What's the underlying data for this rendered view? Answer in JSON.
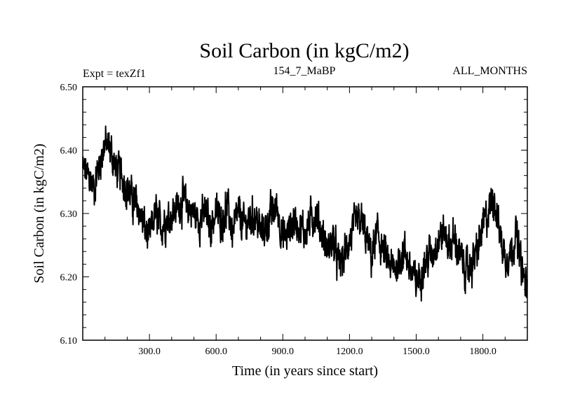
{
  "chart_data": {
    "type": "line",
    "title": "Soil Carbon (in kgC/m2)",
    "subtitle_left": "Expt = texZf1",
    "subtitle_center": "154_7_MaBP",
    "subtitle_right": "ALL_MONTHS",
    "xlabel": "Time (in years since start)",
    "ylabel": "Soil Carbon (in kgC/m2)",
    "xlim": [
      0,
      2000
    ],
    "ylim": [
      6.1,
      6.5
    ],
    "xticks": [
      300,
      600,
      900,
      1200,
      1500,
      1800
    ],
    "xtick_labels": [
      "300.0",
      "600.0",
      "900.0",
      "1200.0",
      "1500.0",
      "1800.0"
    ],
    "yticks": [
      6.1,
      6.2,
      6.3,
      6.4,
      6.5
    ],
    "ytick_labels": [
      "6.10",
      "6.20",
      "6.30",
      "6.40",
      "6.50"
    ],
    "series": [
      {
        "name": "Soil Carbon",
        "color": "#000000",
        "x": [
          0,
          25,
          50,
          75,
          100,
          125,
          150,
          175,
          200,
          225,
          250,
          275,
          300,
          325,
          350,
          375,
          400,
          425,
          450,
          475,
          500,
          525,
          550,
          575,
          600,
          625,
          650,
          675,
          700,
          725,
          750,
          775,
          800,
          825,
          850,
          875,
          900,
          925,
          950,
          975,
          1000,
          1025,
          1050,
          1075,
          1100,
          1125,
          1150,
          1175,
          1200,
          1225,
          1250,
          1275,
          1300,
          1325,
          1350,
          1375,
          1400,
          1425,
          1450,
          1475,
          1500,
          1525,
          1550,
          1575,
          1600,
          1625,
          1650,
          1675,
          1700,
          1725,
          1750,
          1775,
          1800,
          1825,
          1850,
          1875,
          1900,
          1925,
          1950,
          1975,
          2000
        ],
        "values": [
          6.37,
          6.36,
          6.34,
          6.38,
          6.41,
          6.4,
          6.37,
          6.36,
          6.34,
          6.32,
          6.31,
          6.28,
          6.26,
          6.3,
          6.28,
          6.29,
          6.3,
          6.31,
          6.32,
          6.31,
          6.3,
          6.29,
          6.3,
          6.28,
          6.3,
          6.29,
          6.31,
          6.27,
          6.3,
          6.28,
          6.29,
          6.3,
          6.27,
          6.28,
          6.3,
          6.31,
          6.26,
          6.27,
          6.29,
          6.28,
          6.27,
          6.29,
          6.3,
          6.27,
          6.24,
          6.26,
          6.22,
          6.23,
          6.26,
          6.28,
          6.29,
          6.26,
          6.23,
          6.27,
          6.24,
          6.22,
          6.21,
          6.23,
          6.24,
          6.21,
          6.19,
          6.21,
          6.23,
          6.24,
          6.26,
          6.27,
          6.25,
          6.26,
          6.23,
          6.21,
          6.22,
          6.24,
          6.28,
          6.3,
          6.33,
          6.27,
          6.23,
          6.24,
          6.27,
          6.21,
          6.18
        ],
        "noise_amplitude": 0.025
      }
    ],
    "grid": false,
    "legend": "none"
  }
}
